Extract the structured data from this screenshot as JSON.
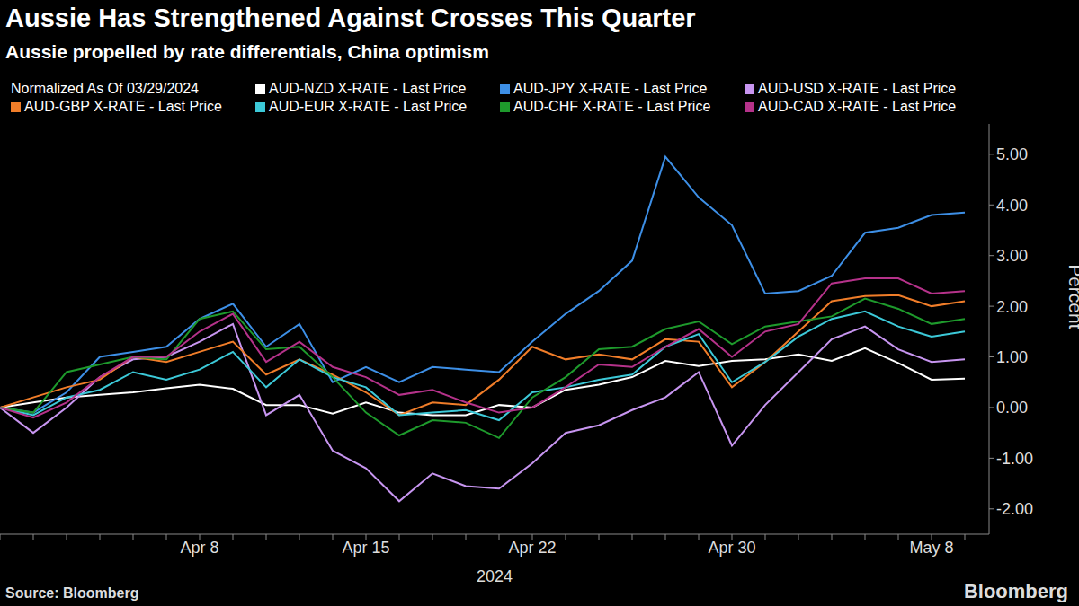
{
  "chart_data": {
    "type": "line",
    "title": "Aussie Has Strengthened Against Crosses This Quarter",
    "subtitle": "Aussie propelled by rate differentials, China optimism",
    "legend_title": "Normalized As Of 03/29/2024",
    "x_label": "2024",
    "y_label": "Percent",
    "source": "Source: Bloomberg",
    "logo": "Bloomberg",
    "legend": "top",
    "grid": false,
    "categories": [
      null,
      null,
      null,
      null,
      null,
      null,
      "Apr 8",
      null,
      null,
      null,
      null,
      "Apr 15",
      null,
      null,
      null,
      null,
      "Apr 22",
      null,
      null,
      null,
      null,
      null,
      "Apr 30",
      null,
      null,
      null,
      null,
      null,
      "May 8",
      null
    ],
    "ylim": [
      -2.5,
      5.6
    ],
    "yticks": [
      {
        "value": -2,
        "label": "-2.00"
      },
      {
        "value": -1,
        "label": "-1.00"
      },
      {
        "value": 0,
        "label": "0.00"
      },
      {
        "value": 1,
        "label": "1.00"
      },
      {
        "value": 2,
        "label": "2.00"
      },
      {
        "value": 3,
        "label": "3.00"
      },
      {
        "value": 4,
        "label": "4.00"
      },
      {
        "value": 5,
        "label": "5.00"
      }
    ],
    "series": [
      {
        "name": "AUD-NZD X-RATE - Last Price",
        "color": "#ffffff",
        "values": [
          0,
          0.1,
          0.2,
          0.25,
          0.3,
          0.38,
          0.45,
          0.37,
          0.05,
          0.05,
          -0.12,
          0.1,
          -0.1,
          -0.15,
          -0.15,
          0.05,
          0.0,
          0.35,
          0.45,
          0.6,
          0.92,
          0.82,
          0.92,
          0.95,
          1.05,
          0.92,
          1.17,
          0.88,
          0.55,
          0.57
        ]
      },
      {
        "name": "AUD-JPY X-RATE - Last Price",
        "color": "#3d8fe6",
        "values": [
          0,
          -0.1,
          0.3,
          1.0,
          1.1,
          1.2,
          1.75,
          2.05,
          1.2,
          1.65,
          0.5,
          0.8,
          0.5,
          0.8,
          0.75,
          0.7,
          1.3,
          1.85,
          2.3,
          2.9,
          4.95,
          4.15,
          3.6,
          2.25,
          2.3,
          2.6,
          3.45,
          3.55,
          3.8,
          3.85
        ]
      },
      {
        "name": "AUD-USD X-RATE - Last Price",
        "color": "#c795f0",
        "values": [
          0,
          -0.5,
          0.0,
          0.6,
          0.95,
          1.0,
          1.3,
          1.65,
          -0.15,
          0.25,
          -0.85,
          -1.2,
          -1.85,
          -1.3,
          -1.55,
          -1.6,
          -1.1,
          -0.5,
          -0.35,
          -0.05,
          0.2,
          0.7,
          -0.75,
          0.05,
          0.7,
          1.35,
          1.6,
          1.15,
          0.9,
          0.95
        ]
      },
      {
        "name": "AUD-GBP X-RATE - Last Price",
        "color": "#f07d29",
        "values": [
          0,
          0.2,
          0.4,
          0.55,
          1.0,
          0.9,
          1.1,
          1.3,
          0.65,
          0.95,
          0.65,
          0.3,
          -0.15,
          0.1,
          0.05,
          0.55,
          1.2,
          0.95,
          1.05,
          0.95,
          1.35,
          1.3,
          0.4,
          0.9,
          1.5,
          2.1,
          2.2,
          2.22,
          2.0,
          2.1
        ]
      },
      {
        "name": "AUD-EUR X-RATE - Last Price",
        "color": "#3cc9d8",
        "values": [
          0,
          -0.15,
          0.2,
          0.35,
          0.7,
          0.55,
          0.75,
          1.1,
          0.4,
          0.95,
          0.6,
          0.4,
          -0.15,
          -0.1,
          -0.05,
          -0.25,
          0.3,
          0.4,
          0.55,
          0.65,
          1.2,
          1.45,
          0.5,
          0.9,
          1.4,
          1.75,
          1.9,
          1.6,
          1.4,
          1.5
        ]
      },
      {
        "name": "AUD-CHF X-RATE - Last Price",
        "color": "#1e9a2c",
        "values": [
          0,
          -0.1,
          0.7,
          0.85,
          1.0,
          0.95,
          1.75,
          1.9,
          1.15,
          1.2,
          0.6,
          -0.1,
          -0.55,
          -0.25,
          -0.3,
          -0.6,
          0.2,
          0.6,
          1.15,
          1.2,
          1.55,
          1.7,
          1.25,
          1.6,
          1.7,
          1.8,
          2.15,
          1.95,
          1.65,
          1.75
        ]
      },
      {
        "name": "AUD-CAD X-RATE - Last Price",
        "color": "#b5328a",
        "values": [
          0,
          -0.2,
          0.1,
          0.6,
          1.0,
          1.0,
          1.5,
          1.85,
          0.9,
          1.3,
          0.8,
          0.6,
          0.25,
          0.35,
          0.1,
          -0.1,
          0.0,
          0.4,
          0.85,
          0.8,
          1.2,
          1.55,
          1.0,
          1.5,
          1.65,
          2.45,
          2.55,
          2.55,
          2.25,
          2.3
        ]
      }
    ]
  }
}
